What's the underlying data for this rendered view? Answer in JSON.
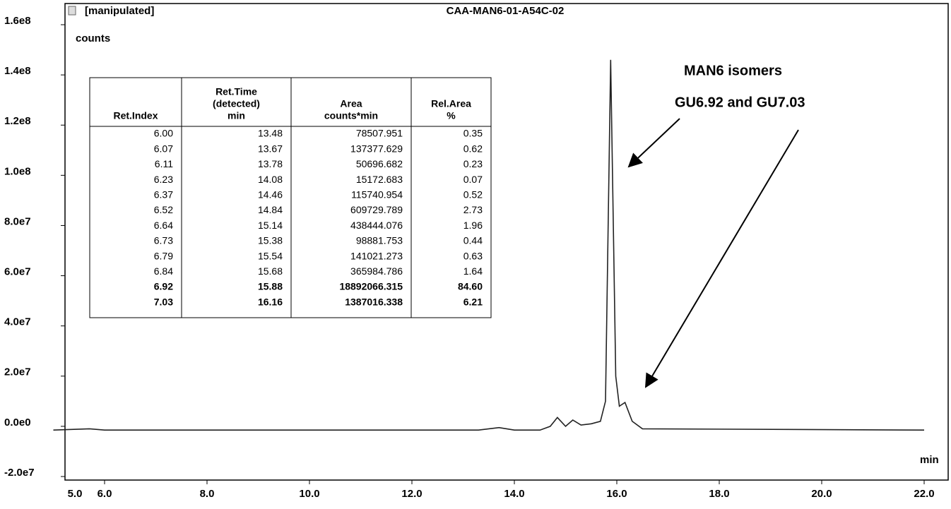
{
  "chart_data": {
    "type": "line",
    "title": "CAA-MAN6-01-A54C-02",
    "status": "[manipulated]",
    "y_label": "counts",
    "x_label": "min",
    "annotations": [
      "MAN6 isomers",
      "GU6.92 and GU7.03"
    ],
    "xlim": [
      5,
      22
    ],
    "xticks": [
      {
        "value": 5,
        "label": "5.0"
      },
      {
        "value": 6,
        "label": "6.0"
      },
      {
        "value": 8,
        "label": "8.0"
      },
      {
        "value": 10,
        "label": "10.0"
      },
      {
        "value": 12,
        "label": "12.0"
      },
      {
        "value": 14,
        "label": "14.0"
      },
      {
        "value": 16,
        "label": "16.0"
      },
      {
        "value": 18,
        "label": "18.0"
      },
      {
        "value": 20,
        "label": "20.0"
      },
      {
        "value": 22,
        "label": "22.0"
      }
    ],
    "ylim": [
      -20000000,
      160000000
    ],
    "yticks": [
      {
        "value": -20000000,
        "label": "-2.0e7"
      },
      {
        "value": 0,
        "label": "0.0e0"
      },
      {
        "value": 20000000,
        "label": "2.0e7"
      },
      {
        "value": 40000000,
        "label": "4.0e7"
      },
      {
        "value": 60000000,
        "label": "6.0e7"
      },
      {
        "value": 80000000,
        "label": "8.0e7"
      },
      {
        "value": 100000000,
        "label": "1.0e8"
      },
      {
        "value": 120000000,
        "label": "1.2e8"
      },
      {
        "value": 140000000,
        "label": "1.4e8"
      },
      {
        "value": 160000000,
        "label": "1.6e8"
      }
    ],
    "series": [
      {
        "name": "CAA-MAN6-01-A54C-02",
        "color": "#222222",
        "x": [
          5.0,
          5.7,
          6.0,
          13.3,
          13.7,
          14.0,
          14.5,
          14.7,
          14.84,
          15.0,
          15.14,
          15.3,
          15.5,
          15.68,
          15.78,
          15.88,
          15.98,
          16.05,
          16.16,
          16.3,
          16.5,
          22.0
        ],
        "values": [
          -1500000,
          -1000000,
          -1500000,
          -1500000,
          -500000,
          -1500000,
          -1500000,
          0,
          3500000,
          0,
          2500000,
          500000,
          1000000,
          2000000,
          10000000,
          146000000,
          20000000,
          8000000,
          9500000,
          2000000,
          -1000000,
          -1500000
        ]
      }
    ]
  },
  "table": {
    "header": [
      "Ret.Index",
      "Ret.Time (detected) min",
      "Area counts*min",
      "Rel.Area %"
    ],
    "header_lines": [
      [
        "Ret.Index"
      ],
      [
        "Ret.Time",
        "(detected)",
        "min"
      ],
      [
        "Area",
        "counts*min"
      ],
      [
        "Rel.Area",
        "%"
      ]
    ],
    "rows": [
      [
        "6.00",
        "13.48",
        "78507.951",
        "0.35"
      ],
      [
        "6.07",
        "13.67",
        "137377.629",
        "0.62"
      ],
      [
        "6.11",
        "13.78",
        "50696.682",
        "0.23"
      ],
      [
        "6.23",
        "14.08",
        "15172.683",
        "0.07"
      ],
      [
        "6.37",
        "14.46",
        "115740.954",
        "0.52"
      ],
      [
        "6.52",
        "14.84",
        "609729.789",
        "2.73"
      ],
      [
        "6.64",
        "15.14",
        "438444.076",
        "1.96"
      ],
      [
        "6.73",
        "15.38",
        "98881.753",
        "0.44"
      ],
      [
        "6.79",
        "15.54",
        "141021.273",
        "0.63"
      ],
      [
        "6.84",
        "15.68",
        "365984.786",
        "1.64"
      ],
      [
        "6.92",
        "15.88",
        "18892066.315",
        "84.60"
      ],
      [
        "7.03",
        "16.16",
        "1387016.338",
        "6.21"
      ]
    ],
    "bold_rows": [
      10,
      11
    ]
  }
}
